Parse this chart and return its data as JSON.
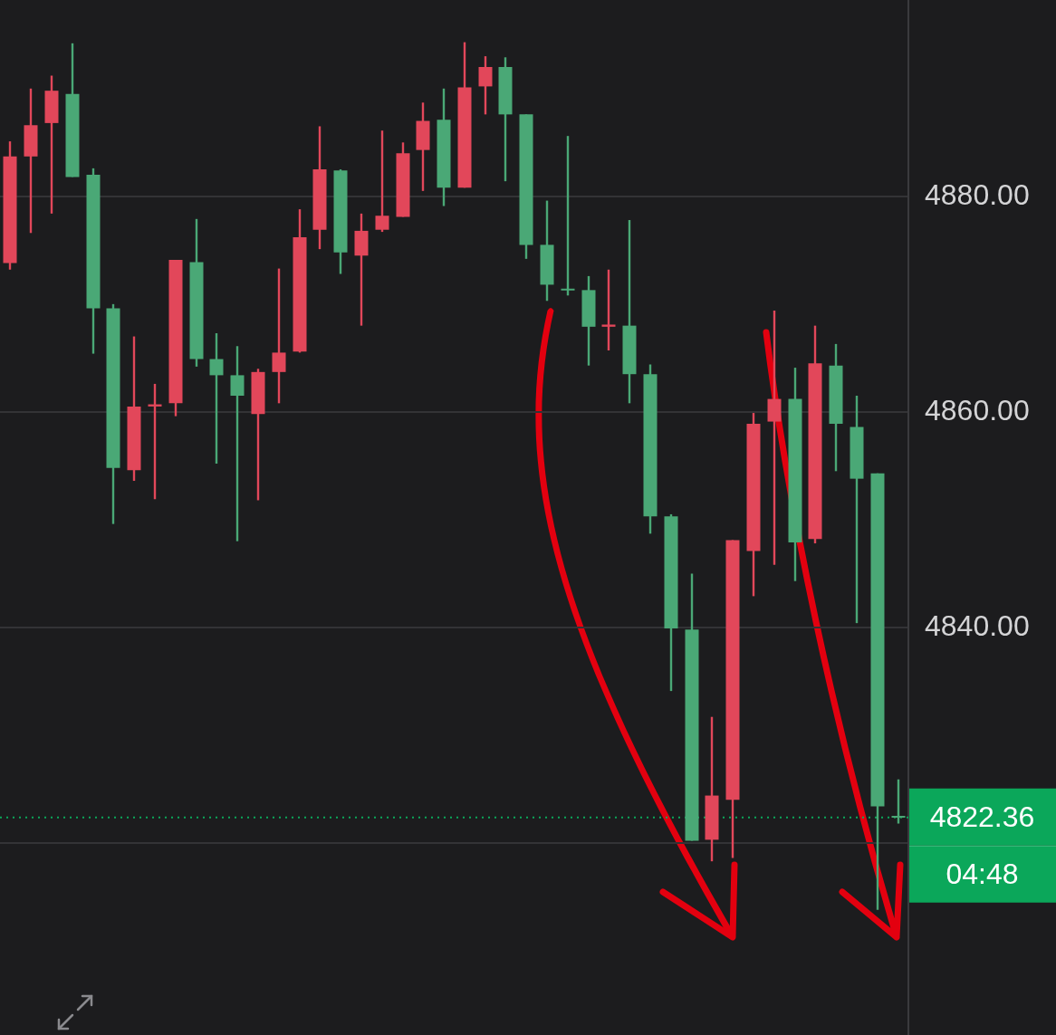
{
  "chart_data": {
    "type": "candlestick",
    "categories": [
      null,
      null,
      null,
      null,
      null,
      null,
      null,
      null,
      null,
      null,
      null,
      null,
      null,
      null,
      null,
      null,
      null,
      null,
      null,
      null,
      null,
      null,
      null,
      null,
      null,
      null,
      null,
      null,
      null,
      null,
      null,
      null,
      null,
      null,
      null,
      null,
      null,
      null,
      null,
      null,
      null,
      null,
      null,
      null
    ],
    "ohlc": [
      [
        4873.8,
        4885.1,
        4873.2,
        4883.7
      ],
      [
        4883.7,
        4890.0,
        4876.6,
        4886.6
      ],
      [
        4886.8,
        4891.2,
        4878.4,
        4889.8
      ],
      [
        4889.5,
        4894.2,
        4881.8,
        4881.8
      ],
      [
        4882.0,
        4882.6,
        4865.4,
        4869.6
      ],
      [
        4869.6,
        4870.0,
        4849.6,
        4854.8
      ],
      [
        4854.6,
        4867.0,
        4853.6,
        4860.5
      ],
      [
        4860.5,
        4862.6,
        4851.9,
        4860.7
      ],
      [
        4860.8,
        4874.1,
        4859.6,
        4874.1
      ],
      [
        4873.9,
        4877.9,
        4864.2,
        4864.9
      ],
      [
        4864.9,
        4867.3,
        4855.2,
        4863.4
      ],
      [
        4863.4,
        4866.1,
        4848.0,
        4861.5
      ],
      [
        4859.8,
        4864.0,
        4851.8,
        4863.7
      ],
      [
        4863.7,
        4873.3,
        4860.8,
        4865.5
      ],
      [
        4865.6,
        4878.8,
        4865.5,
        4876.2
      ],
      [
        4876.9,
        4886.5,
        4875.1,
        4882.5
      ],
      [
        4882.4,
        4882.5,
        4872.8,
        4874.8
      ],
      [
        4874.5,
        4878.4,
        4868.0,
        4876.8
      ],
      [
        4876.9,
        4886.1,
        4876.7,
        4878.2
      ],
      [
        4878.1,
        4885.0,
        4878.1,
        4884.0
      ],
      [
        4884.3,
        4888.7,
        4880.5,
        4887.0
      ],
      [
        4887.1,
        4890.0,
        4879.1,
        4880.8
      ],
      [
        4880.8,
        4894.3,
        4880.8,
        4890.1
      ],
      [
        4890.2,
        4893.0,
        4887.6,
        4892.0
      ],
      [
        4892.0,
        4892.9,
        4881.4,
        4887.6
      ],
      [
        4887.6,
        4887.6,
        4874.2,
        4875.5
      ],
      [
        4875.5,
        4879.6,
        4870.3,
        4871.8
      ],
      [
        4871.4,
        4885.6,
        4870.8,
        4871.3
      ],
      [
        4871.3,
        4872.6,
        4864.3,
        4867.9
      ],
      [
        4867.9,
        4873.2,
        4865.7,
        4868.1
      ],
      [
        4868.0,
        4877.8,
        4860.8,
        4863.5
      ],
      [
        4863.5,
        4864.4,
        4848.7,
        4850.3
      ],
      [
        4850.3,
        4850.5,
        4834.1,
        4839.9
      ],
      [
        4839.8,
        4845.0,
        4820.2,
        4820.2
      ],
      [
        4820.3,
        4831.7,
        4818.3,
        4824.4
      ],
      [
        4824.0,
        4848.1,
        4818.6,
        4848.1
      ],
      [
        4847.1,
        4859.9,
        4842.9,
        4858.9
      ],
      [
        4859.1,
        4869.4,
        4845.8,
        4861.2
      ],
      [
        4861.2,
        4864.1,
        4844.3,
        4847.9
      ],
      [
        4848.2,
        4868.0,
        4847.8,
        4864.5
      ],
      [
        4864.3,
        4866.3,
        4854.5,
        4858.9
      ],
      [
        4858.6,
        4861.5,
        4840.4,
        4853.8
      ],
      [
        4854.3,
        4854.3,
        4813.8,
        4823.4
      ],
      [
        4822.5,
        4825.9,
        4821.8,
        4822.36
      ]
    ],
    "colors": [
      "#e2475a",
      "#e2475a",
      "#e2475a",
      "#4aa876",
      "#4aa876",
      "#4aa876",
      "#e2475a",
      "#e2475a",
      "#e2475a",
      "#4aa876",
      "#4aa876",
      "#4aa876",
      "#e2475a",
      "#e2475a",
      "#e2475a",
      "#e2475a",
      "#4aa876",
      "#e2475a",
      "#e2475a",
      "#e2475a",
      "#e2475a",
      "#4aa876",
      "#e2475a",
      "#e2475a",
      "#4aa876",
      "#4aa876",
      "#4aa876",
      "#4aa876",
      "#4aa876",
      "#e2475a",
      "#4aa876",
      "#4aa876",
      "#4aa876",
      "#4aa876",
      "#e2475a",
      "#e2475a",
      "#e2475a",
      "#e2475a",
      "#4aa876",
      "#e2475a",
      "#4aa876",
      "#4aa876",
      "#4aa876",
      "#4aa876"
    ],
    "ylim": [
      4802.2,
      4898.2
    ],
    "yticks": [
      {
        "value": 4820,
        "label": null
      },
      {
        "value": 4840,
        "label": "4840.00"
      },
      {
        "value": 4860,
        "label": "4860.00"
      },
      {
        "value": 4880,
        "label": "4880.00"
      }
    ],
    "ref_lines": [
      {
        "axis": "y",
        "value": 4822.36,
        "label": "4822.36",
        "color": "#0ba75a",
        "line_style": "dotted"
      }
    ],
    "annotations": [
      "04:48"
    ],
    "grid": "y",
    "tick_labels": "y"
  }
}
